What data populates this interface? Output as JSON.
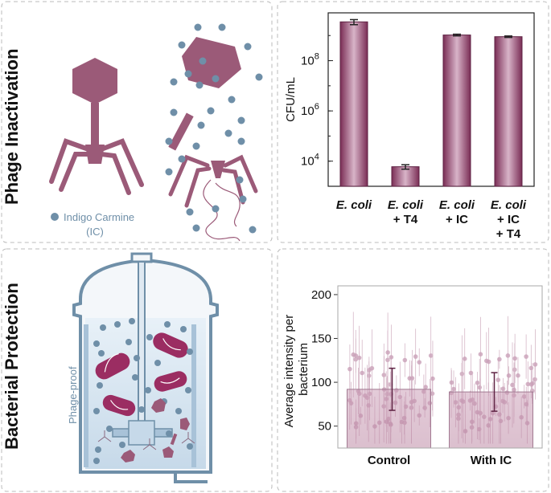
{
  "panels": {
    "top_left": {
      "side_title": "Phage Inactivation",
      "legend_label_line1": "Indigo Carmine",
      "legend_label_line2": "(IC)"
    },
    "bottom_left": {
      "side_title": "Bacterial Protection",
      "vessel_label": "Phage-proof"
    }
  },
  "colors": {
    "phage": "#9b5a78",
    "ic_dot": "#6f8fa8",
    "bar_dark": "#7a2d55",
    "bar_light": "#c9a0b8",
    "vessel": "#6f8fa8"
  },
  "chart_data": [
    {
      "type": "bar",
      "ylabel": "CFU/mL",
      "yscale": "log",
      "ylim": [
        1000,
        8000000000
      ],
      "yticks": [
        10000,
        1000000,
        100000000
      ],
      "ytick_labels": [
        {
          "base": "10",
          "exp": "4"
        },
        {
          "base": "10",
          "exp": "6"
        },
        {
          "base": "10",
          "exp": "8"
        }
      ],
      "categories": [
        {
          "lines": [
            "E. coli"
          ],
          "italic": [
            true
          ]
        },
        {
          "lines": [
            "E. coli",
            "+ T4"
          ],
          "italic": [
            true,
            false
          ]
        },
        {
          "lines": [
            "E. coli",
            "+ IC"
          ],
          "italic": [
            true,
            false
          ]
        },
        {
          "lines": [
            "E. coli",
            "+ IC",
            "+ T4"
          ],
          "italic": [
            true,
            false,
            false
          ]
        }
      ],
      "values": [
        3500000000,
        6000,
        1050000000,
        900000000
      ],
      "errors": [
        800000000,
        1200,
        80000000,
        60000000
      ]
    },
    {
      "type": "bar",
      "ylabel": "Average intensity per bacterium",
      "ylim": [
        25,
        210
      ],
      "yticks": [
        50,
        100,
        150,
        200
      ],
      "categories": [
        "Control",
        "With IC"
      ],
      "values": [
        92,
        89
      ],
      "errors": [
        24,
        22
      ]
    }
  ]
}
